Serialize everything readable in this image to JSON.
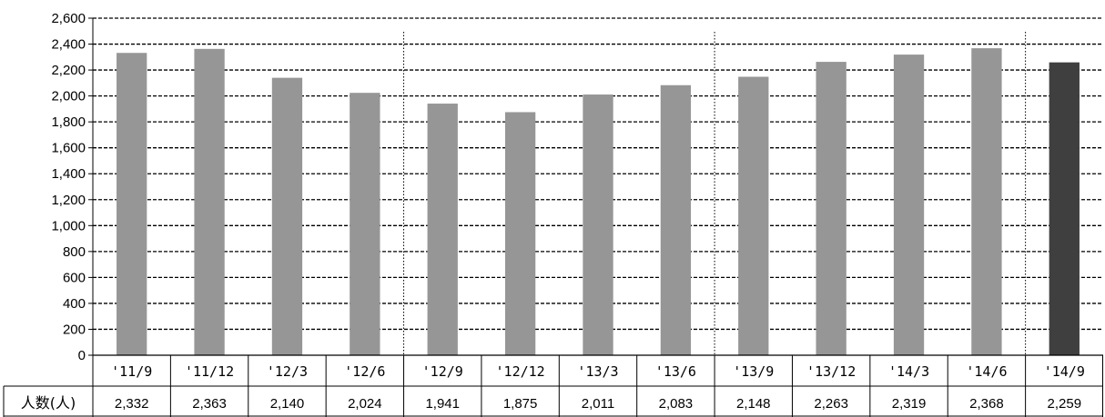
{
  "chart_data": {
    "type": "bar",
    "categories": [
      "'11/9",
      "'11/12",
      "'12/3",
      "'12/6",
      "'12/9",
      "'12/12",
      "'13/3",
      "'13/6",
      "'13/9",
      "'13/12",
      "'14/3",
      "'14/6",
      "'14/9"
    ],
    "series": [
      {
        "name": "人数(人)",
        "values": [
          2332,
          2363,
          2140,
          2024,
          1941,
          1875,
          2011,
          2083,
          2148,
          2263,
          2319,
          2368,
          2259
        ],
        "value_labels": [
          "2,332",
          "2,363",
          "2,140",
          "2,024",
          "1,941",
          "1,875",
          "2,011",
          "2,083",
          "2,148",
          "2,263",
          "2,319",
          "2,368",
          "2,259"
        ]
      }
    ],
    "ylim": [
      0,
      2600
    ],
    "yticks": [
      "0",
      "200",
      "400",
      "600",
      "800",
      "1,000",
      "1,200",
      "1,400",
      "1,600",
      "1,800",
      "2,000",
      "2,200",
      "2,400",
      "2,600"
    ],
    "grid": true,
    "colors": {
      "bar": "#969696",
      "highlight_bar": "#3f3f3f",
      "highlight_index": 12
    },
    "year_separators_after": [
      "'12/6",
      "'13/6",
      "'14/6"
    ],
    "data_table": true
  }
}
